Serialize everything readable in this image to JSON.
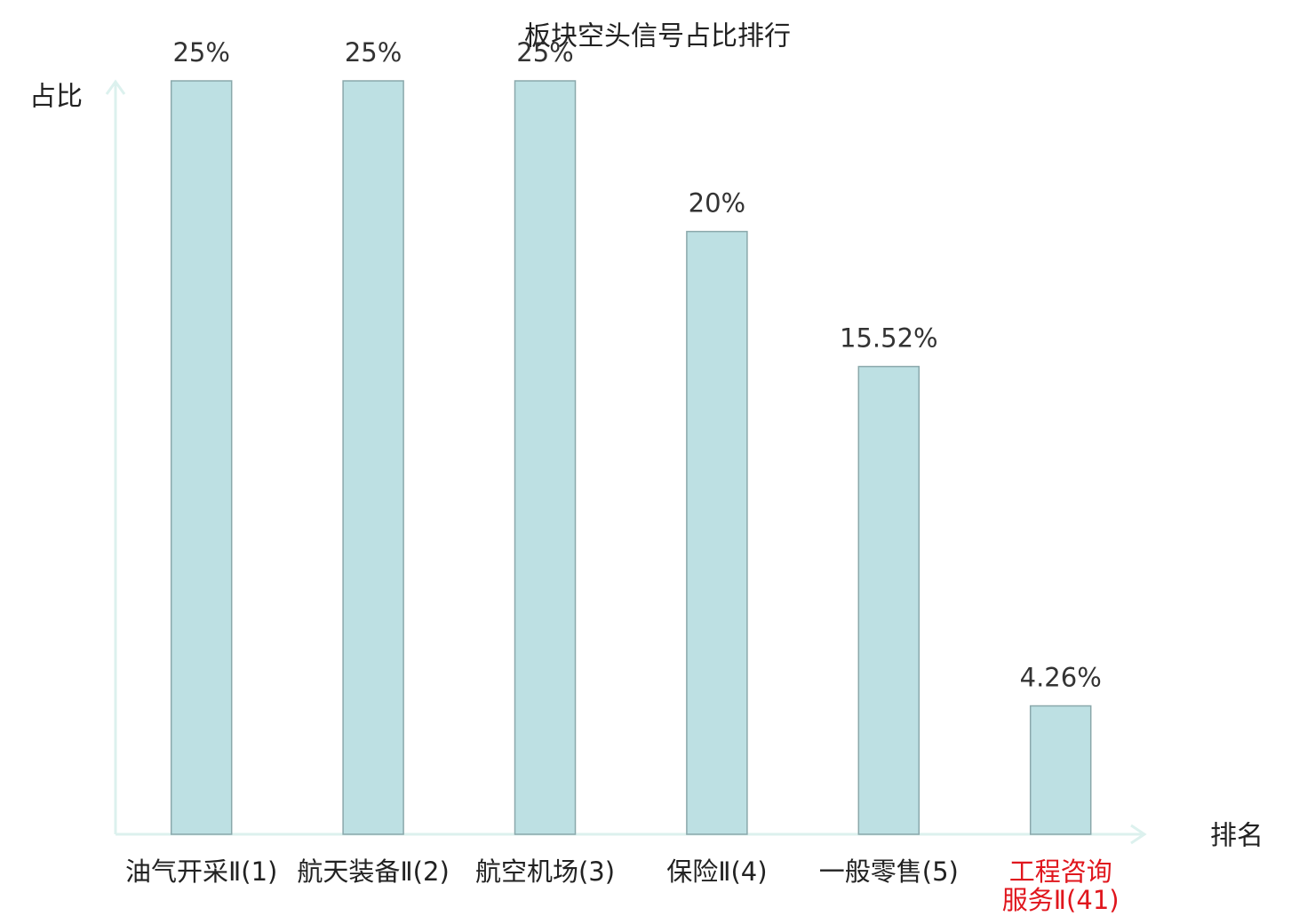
{
  "chart_data": {
    "type": "bar",
    "title": "板块空头信号占比排行",
    "y_label": "占比",
    "x_label": "排名",
    "categories": [
      "油气开采Ⅱ(1)",
      "航天装备Ⅱ(2)",
      "航空机场(3)",
      "保险Ⅱ(4)",
      "一般零售(5)",
      "工程咨询服务Ⅱ(41)"
    ],
    "values": [
      25,
      25,
      25,
      20,
      15.52,
      4.26
    ],
    "value_labels": [
      "25%",
      "25%",
      "25%",
      "20%",
      "15.52%",
      "4.26%"
    ],
    "color": "#bde0e3",
    "category_label_colors": [
      "#222222",
      "#222222",
      "#222222",
      "#222222",
      "#222222",
      "#e0161d"
    ],
    "ylim": [
      0,
      25
    ]
  }
}
